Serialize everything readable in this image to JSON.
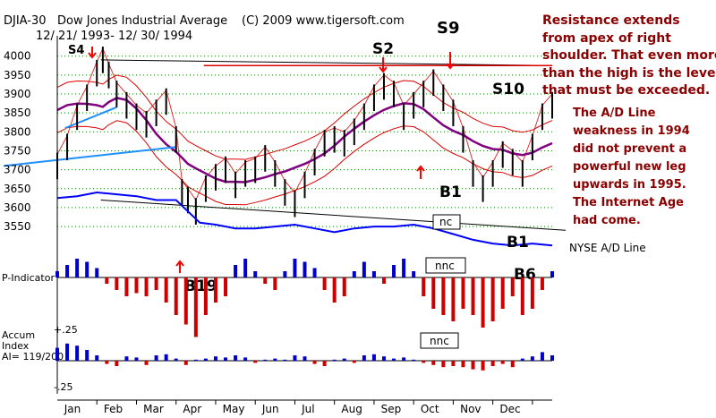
{
  "header": {
    "symbol": "DJIA-30",
    "name": "Dow Jones Industrial Average",
    "copyright": "(C) 2009 www.tigersoft.com",
    "date_range": "12/ 21/ 1993- 12/ 30/ 1994"
  },
  "annotation": {
    "lines": [
      "Resistance extends",
      "from apex of right",
      "shoulder.  That even more",
      "than the high is the level",
      "that must be exceeded."
    ],
    "color": "#8b0000"
  },
  "commentary": {
    "lines": [
      "The A/D Line",
      "weakness in 1994",
      "did not prevent a",
      "powerful new leg",
      "upwards in 1995.",
      "The Internet Age",
      "had come."
    ],
    "color": "#8b0000"
  },
  "signals": {
    "s4": "S4",
    "s2": "S2",
    "s9": "S9",
    "s10": "S10",
    "b1_mid": "B1",
    "b1_right": "B1",
    "b19": "B19",
    "b6": "B6"
  },
  "labels": {
    "nc": "nc",
    "nnc_p": "nnc",
    "nnc_accum": "nnc",
    "ad_line": "NYSE A/D Line",
    "p_indicator": "P-Indicator",
    "accum_1": "Accum",
    "accum_2": "Index",
    "accum_3": "AI= 119/200",
    "accum_top": "+.25",
    "accum_bottom": "-.25"
  },
  "colors": {
    "price_bars": "#000000",
    "moving_average": "#800080",
    "bands": "#dd0000",
    "ad_line": "#0000ff",
    "trendline_blue": "#1e90ff",
    "p_pos": "#0000cc",
    "p_neg": "#cc0000",
    "grid": "#008000",
    "signal_arrow": "#ff0000"
  },
  "chart_data": [
    {
      "type": "line",
      "title": "Dow Jones Industrial Average",
      "y_ticks": [
        4000,
        3950,
        3900,
        3850,
        3800,
        3750,
        3700,
        3650,
        3600,
        3550
      ],
      "ylim": [
        3510,
        4030
      ],
      "x_month_labels": [
        "Jan",
        "Feb",
        "Mar",
        "Apr",
        "May",
        "Jun",
        "Jul",
        "Aug",
        "Sep",
        "Oct",
        "Nov",
        "Dec"
      ],
      "xlim": [
        0,
        12.5
      ],
      "grid": true,
      "series": [
        {
          "kind": "price-bars",
          "x": [
            0,
            0.25,
            0.5,
            0.75,
            1.0,
            1.15,
            1.3,
            1.5,
            1.75,
            2.0,
            2.25,
            2.5,
            2.75,
            3.0,
            3.15,
            3.3,
            3.5,
            3.75,
            4.0,
            4.25,
            4.5,
            4.75,
            5.0,
            5.25,
            5.5,
            5.75,
            6.0,
            6.25,
            6.5,
            6.75,
            7.0,
            7.25,
            7.5,
            7.75,
            8.0,
            8.25,
            8.5,
            8.75,
            9.0,
            9.25,
            9.5,
            9.75,
            10.0,
            10.25,
            10.5,
            10.75,
            11.0,
            11.25,
            11.5,
            11.75,
            12.0,
            12.25,
            12.5
          ],
          "values": [
            3710,
            3760,
            3840,
            3890,
            3955,
            3990,
            3950,
            3900,
            3870,
            3840,
            3820,
            3850,
            3880,
            3780,
            3640,
            3620,
            3590,
            3650,
            3680,
            3700,
            3660,
            3690,
            3700,
            3730,
            3690,
            3640,
            3610,
            3660,
            3720,
            3770,
            3780,
            3770,
            3800,
            3840,
            3890,
            3920,
            3900,
            3840,
            3870,
            3900,
            3930,
            3890,
            3850,
            3780,
            3690,
            3650,
            3690,
            3740,
            3720,
            3690,
            3760,
            3840,
            3870
          ]
        },
        {
          "name": "NYSE A/D Line",
          "kind": "ad-line",
          "x": [
            0,
            0.5,
            1.0,
            1.5,
            2.0,
            2.5,
            3.0,
            3.3,
            3.6,
            4.0,
            4.5,
            5.0,
            5.5,
            6.0,
            6.5,
            7.0,
            7.5,
            8.0,
            8.5,
            9.0,
            9.5,
            10.0,
            10.5,
            11.0,
            11.5,
            12.0,
            12.5
          ],
          "values": [
            3625,
            3630,
            3640,
            3635,
            3630,
            3620,
            3620,
            3590,
            3560,
            3555,
            3545,
            3545,
            3550,
            3555,
            3545,
            3535,
            3545,
            3550,
            3550,
            3555,
            3545,
            3530,
            3515,
            3505,
            3500,
            3505,
            3500
          ]
        }
      ]
    },
    {
      "type": "bar",
      "title": "P-Indicator",
      "xlim": [
        0,
        12.5
      ],
      "series": [
        {
          "name": "P-Indicator",
          "x": [
            0,
            0.25,
            0.5,
            0.75,
            1.0,
            1.25,
            1.5,
            1.75,
            2.0,
            2.25,
            2.5,
            2.75,
            3.0,
            3.25,
            3.5,
            3.75,
            4.0,
            4.25,
            4.5,
            4.75,
            5.0,
            5.25,
            5.5,
            5.75,
            6.0,
            6.25,
            6.5,
            6.75,
            7.0,
            7.25,
            7.5,
            7.75,
            8.0,
            8.25,
            8.5,
            8.75,
            9.0,
            9.25,
            9.5,
            9.75,
            10.0,
            10.25,
            10.5,
            10.75,
            11.0,
            11.25,
            11.5,
            11.75,
            12.0,
            12.25,
            12.5
          ],
          "values": [
            0.1,
            0.2,
            0.3,
            0.25,
            0.15,
            -0.1,
            -0.2,
            -0.3,
            -0.25,
            -0.3,
            -0.2,
            -0.4,
            -0.6,
            -0.75,
            -0.95,
            -0.6,
            -0.4,
            -0.3,
            0.2,
            0.3,
            0.1,
            -0.1,
            -0.2,
            0.1,
            0.3,
            0.25,
            0.15,
            -0.2,
            -0.4,
            -0.3,
            0.1,
            0.25,
            0.1,
            -0.1,
            0.2,
            0.3,
            0.1,
            -0.3,
            -0.5,
            -0.6,
            -0.7,
            -0.5,
            -0.6,
            -0.8,
            -0.7,
            -0.5,
            -0.3,
            -0.6,
            -0.5,
            -0.2,
            0.1
          ]
        }
      ]
    },
    {
      "type": "bar",
      "title": "Accum Index",
      "ylim": [
        -0.25,
        0.25
      ],
      "y_ticks": [
        0.25,
        -0.25
      ],
      "xlim": [
        0,
        12.5
      ],
      "series": [
        {
          "name": "Accum Index",
          "x": [
            0,
            0.25,
            0.5,
            0.75,
            1.0,
            1.25,
            1.5,
            1.75,
            2.0,
            2.25,
            2.5,
            2.75,
            3.0,
            3.25,
            3.5,
            3.75,
            4.0,
            4.25,
            4.5,
            4.75,
            5.0,
            5.25,
            5.5,
            5.75,
            6.0,
            6.25,
            6.5,
            6.75,
            7.0,
            7.25,
            7.5,
            7.75,
            8.0,
            8.25,
            8.5,
            8.75,
            9.0,
            9.25,
            9.5,
            9.75,
            10.0,
            10.25,
            10.5,
            10.75,
            11.0,
            11.25,
            11.5,
            11.75,
            12.0,
            12.25,
            12.5
          ],
          "values": [
            0.12,
            0.16,
            0.14,
            0.1,
            0.05,
            -0.03,
            -0.05,
            0.04,
            0.03,
            -0.04,
            0.05,
            0.06,
            0.02,
            -0.04,
            0.01,
            0.02,
            0.04,
            0.03,
            0.05,
            0.03,
            -0.02,
            0.01,
            0.02,
            0.01,
            0.05,
            0.04,
            -0.03,
            -0.05,
            0.01,
            0.02,
            -0.02,
            0.05,
            0.06,
            0.04,
            0.02,
            0.03,
            0.01,
            -0.02,
            -0.04,
            -0.06,
            -0.05,
            -0.06,
            -0.08,
            -0.09,
            -0.05,
            -0.03,
            -0.06,
            0.02,
            0.04,
            0.08,
            0.05
          ]
        }
      ]
    }
  ]
}
